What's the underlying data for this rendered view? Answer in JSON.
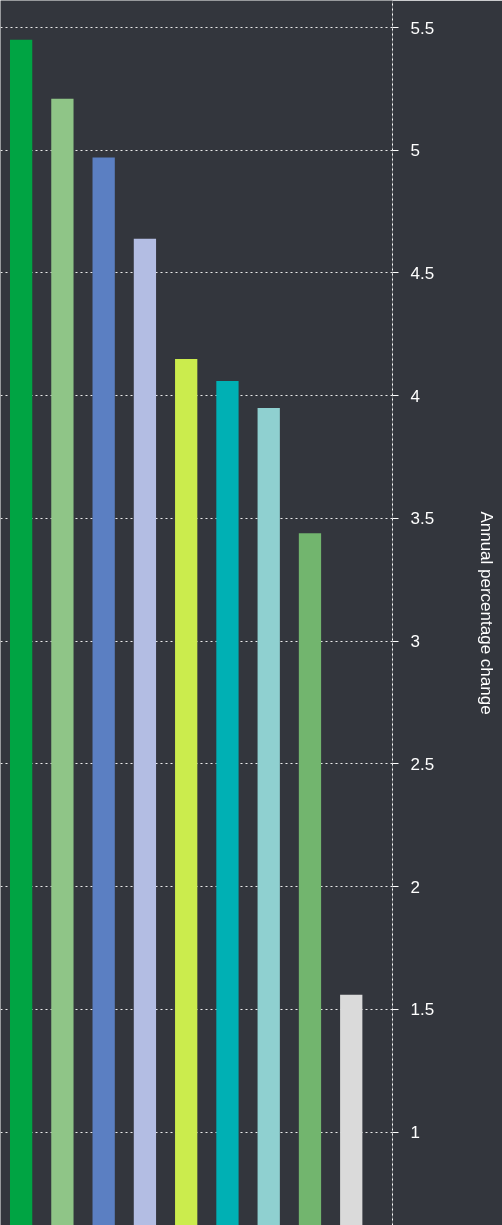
{
  "chart_data": {
    "type": "bar",
    "ylabel": "Annual percentage change",
    "categories": [
      null,
      null,
      null,
      null,
      null,
      null,
      null,
      null,
      null
    ],
    "values": [
      5.45,
      5.21,
      4.97,
      4.64,
      4.15,
      4.06,
      3.95,
      3.44,
      1.56
    ],
    "colors": [
      "#00a443",
      "#8fc587",
      "#5b7fc2",
      "#b3bde3",
      "#cbec4d",
      "#00b0b4",
      "#8fd0d0",
      "#72b56e",
      "#dadada"
    ],
    "ylim": [
      0.62,
      5.61
    ],
    "yticks": [
      1,
      1.5,
      2,
      2.5,
      3,
      3.5,
      4,
      4.5,
      5,
      5.5
    ],
    "grid": "y"
  }
}
